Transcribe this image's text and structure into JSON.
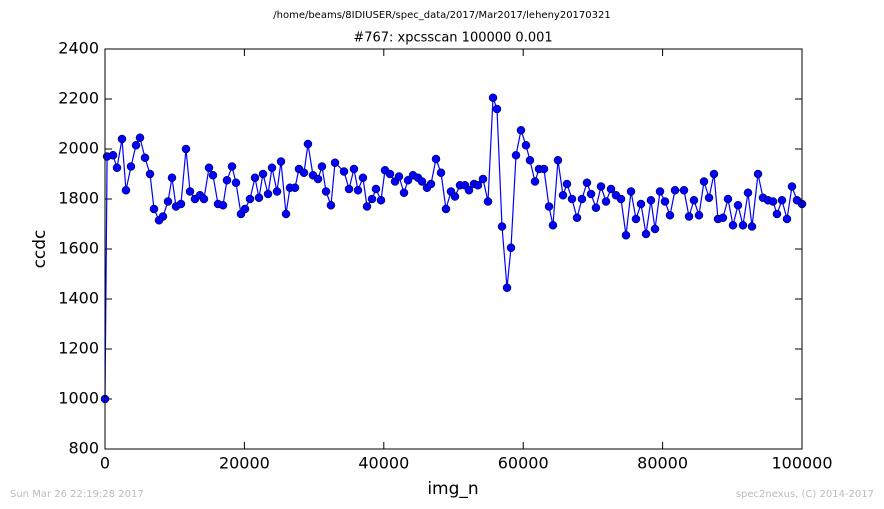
{
  "chart_data": {
    "type": "line",
    "suptitle": "/home/beams/8IDIUSER/spec_data/2017/Mar2017/leheny20170321",
    "title": "#767: xpcsscan 100000 0.001",
    "x_label": "img_n",
    "y_label": "ccdc",
    "footer_left": "Sun Mar 26 22:19:28 2017",
    "footer_right": "spec2nexus, (C) 2014-2017",
    "color": "#0000ff",
    "marker": "circle",
    "grid": false,
    "xlim": [
      0,
      100000
    ],
    "xticks": [
      0,
      20000,
      40000,
      60000,
      80000,
      100000
    ],
    "ylim": [
      800,
      2400
    ],
    "yticks": [
      800,
      1000,
      1200,
      1400,
      1600,
      1800,
      2000,
      2200,
      2400
    ],
    "x": [
      0,
      300,
      1150,
      1720,
      2440,
      3010,
      3730,
      4450,
      5020,
      5740,
      6460,
      7030,
      7750,
      8320,
      9040,
      9610,
      10190,
      10900,
      11620,
      12200,
      12910,
      13630,
      14200,
      14920,
      15490,
      16210,
      16930,
      17500,
      18220,
      18790,
      19510,
      20090,
      20800,
      21520,
      22090,
      22670,
      23390,
      23960,
      24680,
      25250,
      25970,
      26540,
      27260,
      27830,
      28550,
      29120,
      29840,
      30560,
      31130,
      31710,
      32420,
      33000,
      34290,
      35010,
      35720,
      36300,
      37010,
      37590,
      38310,
      38880,
      39600,
      40170,
      40890,
      41610,
      42180,
      42900,
      43470,
      44190,
      44910,
      45480,
      46200,
      46770,
      47490,
      48210,
      48920,
      49640,
      50210,
      50930,
      51650,
      52220,
      52940,
      53510,
      54230,
      54950,
      55670,
      56240,
      56960,
      57680,
      58250,
      58970,
      59680,
      60400,
      60970,
      61690,
      62270,
      62980,
      63700,
      64270,
      64990,
      65710,
      66280,
      67000,
      67720,
      68430,
      69150,
      69730,
      70440,
      71160,
      71880,
      72600,
      73310,
      74030,
      74750,
      75470,
      76180,
      76900,
      77620,
      78330,
      78910,
      79630,
      80340,
      81060,
      81780,
      83070,
      83790,
      84500,
      85220,
      85940,
      86660,
      87370,
      87950,
      88660,
      89380,
      90100,
      90820,
      91530,
      92250,
      92830,
      93690,
      94400,
      95120,
      95840,
      96410,
      97130,
      97850,
      98560,
      99280,
      100000
    ],
    "values": [
      1000,
      1970,
      1975,
      1925,
      2040,
      1835,
      1930,
      2015,
      2045,
      1965,
      1900,
      1760,
      1715,
      1730,
      1790,
      1885,
      1770,
      1780,
      2000,
      1830,
      1800,
      1815,
      1800,
      1925,
      1895,
      1780,
      1775,
      1875,
      1930,
      1865,
      1740,
      1760,
      1800,
      1885,
      1805,
      1900,
      1820,
      1925,
      1830,
      1950,
      1740,
      1845,
      1845,
      1920,
      1905,
      2020,
      1895,
      1880,
      1930,
      1830,
      1775,
      1945,
      1910,
      1840,
      1920,
      1835,
      1885,
      1770,
      1800,
      1840,
      1795,
      1915,
      1900,
      1870,
      1890,
      1825,
      1875,
      1895,
      1885,
      1870,
      1845,
      1860,
      1960,
      1905,
      1760,
      1830,
      1810,
      1855,
      1855,
      1835,
      1860,
      1855,
      1880,
      1790,
      2205,
      2160,
      1690,
      1445,
      1605,
      1975,
      2075,
      2015,
      1955,
      1870,
      1920,
      1920,
      1770,
      1695,
      1955,
      1815,
      1860,
      1800,
      1725,
      1800,
      1865,
      1820,
      1765,
      1850,
      1790,
      1840,
      1815,
      1800,
      1655,
      1830,
      1720,
      1780,
      1660,
      1795,
      1680,
      1830,
      1790,
      1735,
      1835,
      1835,
      1730,
      1795,
      1735,
      1870,
      1805,
      1900,
      1720,
      1725,
      1800,
      1695,
      1775,
      1695,
      1825,
      1690,
      1900,
      1805,
      1795,
      1790,
      1740,
      1795,
      1720,
      1850,
      1795,
      1780
    ]
  }
}
